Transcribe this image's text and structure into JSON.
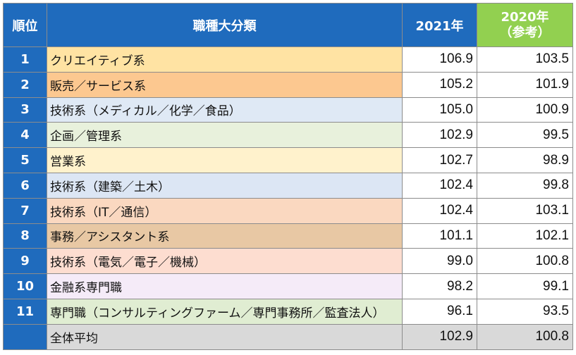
{
  "header": {
    "rank": "順位",
    "category": "職種大分類",
    "year_2021": "2021年",
    "year_2020": "2020年",
    "year_2020_note": "（参考）"
  },
  "rows": [
    {
      "rank": "1",
      "category": "クリエイティブ系",
      "v2021": "106.9",
      "v2020": "103.5",
      "color": "#ffe3a3"
    },
    {
      "rank": "2",
      "category": "販売／サービス系",
      "v2021": "105.2",
      "v2020": "101.9",
      "color": "#fcc890"
    },
    {
      "rank": "3",
      "category": "技術系（メディカル／化学／食品）",
      "v2021": "105.0",
      "v2020": "100.9",
      "color": "#dfe9f5"
    },
    {
      "rank": "4",
      "category": "企画／管理系",
      "v2021": "102.9",
      "v2020": "99.5",
      "color": "#e8f1dc"
    },
    {
      "rank": "5",
      "category": "営業系",
      "v2021": "102.7",
      "v2020": "98.9",
      "color": "#fff2cc"
    },
    {
      "rank": "6",
      "category": "技術系（建築／土木）",
      "v2021": "102.4",
      "v2020": "99.8",
      "color": "#dce6f4"
    },
    {
      "rank": "7",
      "category": "技術系（IT／通信）",
      "v2021": "102.4",
      "v2020": "103.1",
      "color": "#fad8c0"
    },
    {
      "rank": "8",
      "category": "事務／アシスタント系",
      "v2021": "101.1",
      "v2020": "102.1",
      "color": "#e8c8a4"
    },
    {
      "rank": "9",
      "category": "技術系（電気／電子／機械）",
      "v2021": "99.0",
      "v2020": "100.8",
      "color": "#fdddd0"
    },
    {
      "rank": "10",
      "category": "金融系専門職",
      "v2021": "98.2",
      "v2020": "99.1",
      "color": "#f5ebf8"
    },
    {
      "rank": "11",
      "category": "専門職（コンサルティングファーム／専門事務所／監査法人）",
      "v2021": "96.1",
      "v2020": "93.5",
      "color": "#e0edd2"
    }
  ],
  "average": {
    "rank": "",
    "category": "全体平均",
    "v2021": "102.9",
    "v2020": "100.8",
    "color": "#d9d9d9"
  }
}
